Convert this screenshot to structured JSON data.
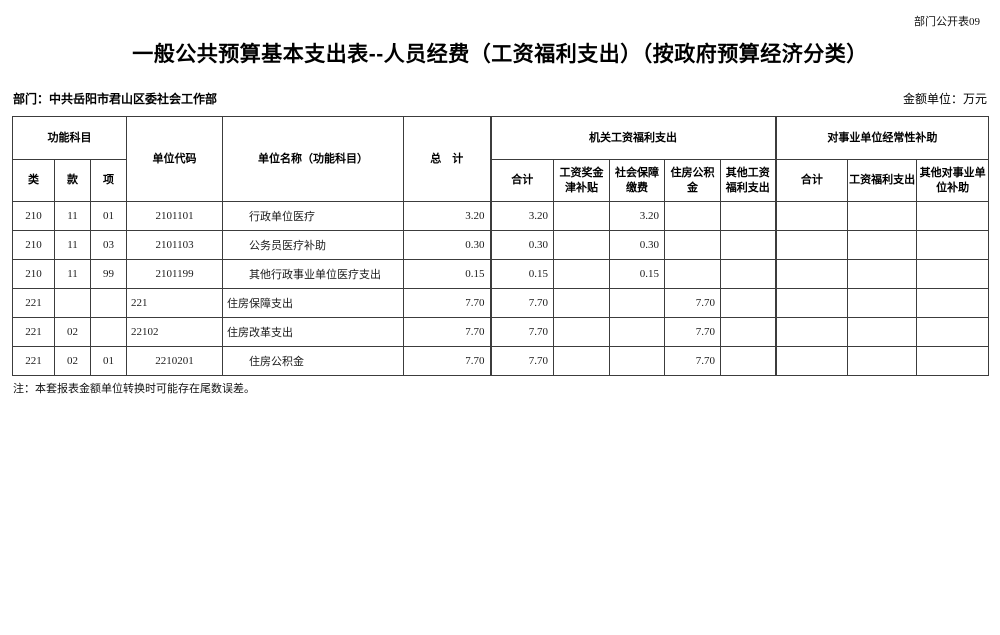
{
  "page": {
    "doc_label": "部门公开表09",
    "title": "一般公共预算基本支出表--人员经费（工资福利支出）（按政府预算经济分类）",
    "department_label": "部门：中共岳阳市君山区委社会工作部",
    "amount_unit_label": "金额单位：万元",
    "note": "注：本套报表金额单位转换时可能存在尾数误差。",
    "colors": {
      "text": "#000000",
      "grid_line": "#3c3c3c",
      "background": "#ffffff"
    }
  },
  "table": {
    "header": {
      "func_group": "功能科目",
      "cls": "类",
      "sec": "款",
      "item": "项",
      "unit_code": "单位代码",
      "unit_name": "单位名称（功能科目）",
      "total": "总　计",
      "group1": "机关工资福利支出",
      "group1_cols": [
        "合计",
        "工资奖金津补贴",
        "社会保障缴费",
        "住房公积金",
        "其他工资福利支出"
      ],
      "group2": "对事业单位经常性补助",
      "group2_cols": [
        "合计",
        "工资福利支出",
        "其他对事业单位补助"
      ]
    },
    "rows": [
      {
        "cls": "210",
        "sec": "11",
        "item": "01",
        "code": "2101101",
        "code_align": "center",
        "name": "行政单位医疗",
        "name_indent": true,
        "values": [
          "3.20",
          "3.20",
          "",
          "3.20",
          "",
          "",
          "",
          "",
          ""
        ]
      },
      {
        "cls": "210",
        "sec": "11",
        "item": "03",
        "code": "2101103",
        "code_align": "center",
        "name": "公务员医疗补助",
        "name_indent": true,
        "values": [
          "0.30",
          "0.30",
          "",
          "0.30",
          "",
          "",
          "",
          "",
          ""
        ]
      },
      {
        "cls": "210",
        "sec": "11",
        "item": "99",
        "code": "2101199",
        "code_align": "center",
        "name": "其他行政事业单位医疗支出",
        "name_indent": true,
        "values": [
          "0.15",
          "0.15",
          "",
          "0.15",
          "",
          "",
          "",
          "",
          ""
        ]
      },
      {
        "cls": "221",
        "sec": "",
        "item": "",
        "code": "221",
        "code_align": "left",
        "name": "住房保障支出",
        "name_indent": false,
        "values": [
          "7.70",
          "7.70",
          "",
          "",
          "7.70",
          "",
          "",
          "",
          ""
        ]
      },
      {
        "cls": "221",
        "sec": "02",
        "item": "",
        "code": "22102",
        "code_align": "left",
        "name": "住房改革支出",
        "name_indent": false,
        "values": [
          "7.70",
          "7.70",
          "",
          "",
          "7.70",
          "",
          "",
          "",
          ""
        ]
      },
      {
        "cls": "221",
        "sec": "02",
        "item": "01",
        "code": "2210201",
        "code_align": "center",
        "name": "住房公积金",
        "name_indent": true,
        "values": [
          "7.70",
          "7.70",
          "",
          "",
          "7.70",
          "",
          "",
          "",
          ""
        ]
      }
    ]
  }
}
